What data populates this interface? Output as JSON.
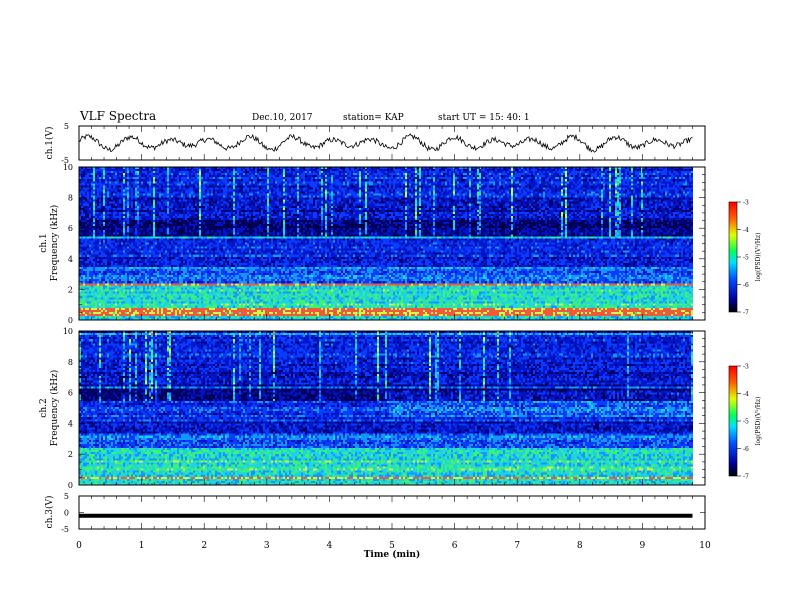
{
  "header": {
    "title": "VLF Spectra",
    "date": "Dec.10, 2017",
    "station": "station= KAP",
    "start": "start  UT =   15: 40: 1"
  },
  "chart_data": [
    {
      "type": "line",
      "panel": "ch1-waveform",
      "ylabel": "ch.1(V)",
      "ylim": [
        -5,
        5
      ],
      "yticks": [
        "5",
        "-5"
      ],
      "xlim": [
        0,
        10
      ],
      "x_end": 9.8,
      "series_color": "#000000",
      "description_values": "oscillating waveform, roughly -2.5 to +2.5 V"
    },
    {
      "type": "heatmap",
      "panel": "ch1-spectrogram",
      "ylabel": "ch.1 Frequency (kHz)",
      "ylim": [
        0,
        10
      ],
      "yticks": [
        "0",
        "2",
        "4",
        "6",
        "8",
        "10"
      ],
      "xlim": [
        0,
        9.8
      ],
      "colorbar": {
        "label": "log(PSD)(V²/Hz)",
        "ticks": [
          "-3",
          "-4",
          "-5",
          "-6",
          "-7"
        ],
        "range": [
          -7,
          -3
        ]
      }
    },
    {
      "type": "heatmap",
      "panel": "ch2-spectrogram",
      "ylabel": "ch.2 Frequency (kHz)",
      "ylim": [
        0,
        10
      ],
      "yticks": [
        "0",
        "2",
        "4",
        "6",
        "8",
        "10"
      ],
      "xlim": [
        0,
        9.8
      ],
      "colorbar": {
        "label": "log(PSD)(V²/Hz)",
        "ticks": [
          "-3",
          "-4",
          "-5",
          "-6",
          "-7"
        ],
        "range": [
          -7,
          -3
        ]
      }
    },
    {
      "type": "line",
      "panel": "ch3-waveform",
      "ylabel": "ch.3(V)",
      "ylim": [
        -5,
        5
      ],
      "yticks": [
        "5",
        "0",
        "-5"
      ],
      "xlim": [
        0,
        10
      ],
      "x_end": 9.8,
      "value": -1.0
    }
  ],
  "xaxis": {
    "label": "Time (min)",
    "ticks": [
      "0",
      "1",
      "2",
      "3",
      "4",
      "5",
      "6",
      "7",
      "8",
      "9",
      "10"
    ]
  },
  "colors": {
    "frame": "#000000",
    "dark_blue": "#000050",
    "blue": "#0a2aff",
    "cyan": "#20c8ff",
    "green": "#30e050",
    "red": "#e03020"
  }
}
